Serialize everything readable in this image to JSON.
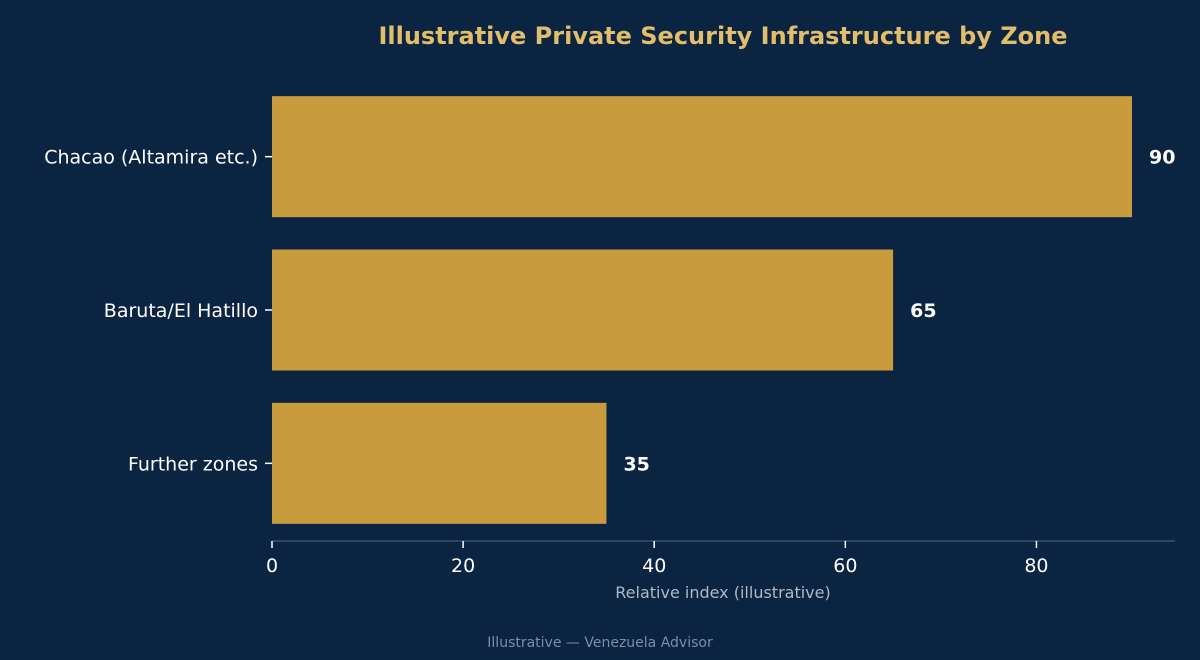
{
  "chart_data": {
    "type": "bar",
    "orientation": "horizontal",
    "title": "Illustrative Private Security Infrastructure by Zone",
    "categories": [
      "Chacao (Altamira etc.)",
      "Baruta/El Hatillo",
      "Further zones"
    ],
    "values": [
      90,
      65,
      35
    ],
    "value_labels": [
      "90",
      "65",
      "35"
    ],
    "xlabel": "Relative index (illustrative)",
    "ylabel": "",
    "xlim": [
      0,
      94.5
    ],
    "x_ticks": [
      0,
      20,
      40,
      60,
      80
    ],
    "x_tick_labels": [
      "0",
      "20",
      "40",
      "60",
      "80"
    ],
    "grid": false,
    "legend": "none"
  },
  "footer": "Illustrative — Venezuela Advisor",
  "colors": {
    "background": "#0b2442",
    "bar": "#c89c3c",
    "title": "#e2bd6a",
    "label": "#ffffff",
    "axis_title": "#aeb9c8",
    "axis_line": "#3b5270",
    "footer": "#7d8ea6"
  }
}
